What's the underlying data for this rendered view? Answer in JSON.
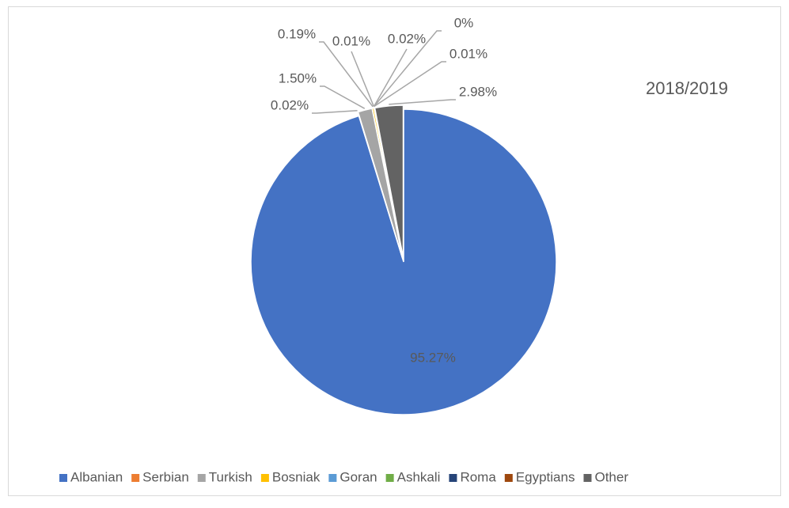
{
  "chart_data": {
    "type": "pie",
    "title": "2018/2019",
    "categories": [
      "Albanian",
      "Serbian",
      "Turkish",
      "Bosniak",
      "Goran",
      "Ashkali",
      "Roma",
      "Egyptians",
      "Other"
    ],
    "values": [
      95.27,
      0.02,
      1.5,
      0.19,
      0.01,
      0.02,
      0,
      0.01,
      2.98
    ],
    "value_labels": [
      "95.27%",
      "0.02%",
      "1.50%",
      "0.19%",
      "0.01%",
      "0.02%",
      "0%",
      "0.01%",
      "2.98%"
    ],
    "colors": [
      "#4472c4",
      "#ed7d31",
      "#a5a5a5",
      "#ffc000",
      "#5b9bd5",
      "#70ad47",
      "#264478",
      "#9e480e",
      "#636363"
    ],
    "legend": "bottom"
  }
}
